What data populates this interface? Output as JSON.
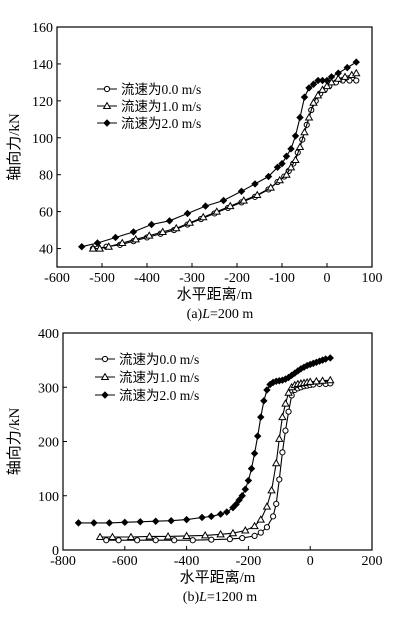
{
  "chart_data": [
    {
      "type": "line",
      "caption_prefix": "(a)",
      "caption_var": "L",
      "caption_rest": "=200 m",
      "xlabel": "水平距离/m",
      "ylabel": "轴向力/kN",
      "xlim": [
        -600,
        100
      ],
      "ylim": [
        30,
        160
      ],
      "xticks": [
        -600,
        -500,
        -400,
        -300,
        -200,
        -100,
        0,
        100
      ],
      "yticks": [
        40,
        60,
        80,
        100,
        120,
        140,
        160
      ],
      "grid": false,
      "legend_position": "top-left",
      "series": [
        {
          "name": "流速为0.0 m/s",
          "marker": "circle",
          "x": [
            -520,
            -510,
            -490,
            -460,
            -430,
            -400,
            -370,
            -340,
            -310,
            -280,
            -250,
            -220,
            -190,
            -160,
            -130,
            -110,
            -95,
            -85,
            -75,
            -65,
            -55,
            -45,
            -35,
            -25,
            -15,
            -5,
            5,
            20,
            35,
            50,
            65
          ],
          "y": [
            40,
            40,
            41,
            42,
            44,
            46,
            48,
            50,
            53,
            56,
            59,
            62,
            65,
            68,
            72,
            76,
            79,
            82,
            86,
            92,
            99,
            107,
            115,
            120,
            124,
            126,
            128,
            130,
            131,
            131,
            131
          ]
        },
        {
          "name": "流速为1.0 m/s",
          "marker": "triangle",
          "x": [
            -520,
            -505,
            -485,
            -455,
            -425,
            -395,
            -365,
            -335,
            -305,
            -275,
            -245,
            -215,
            -185,
            -155,
            -125,
            -105,
            -90,
            -80,
            -70,
            -60,
            -50,
            -40,
            -30,
            -20,
            -10,
            0,
            10,
            25,
            40,
            55,
            65
          ],
          "y": [
            40,
            40,
            41,
            43,
            45,
            47,
            49,
            51,
            54,
            57,
            60,
            63,
            66,
            69,
            73,
            77,
            80,
            84,
            88,
            95,
            103,
            111,
            119,
            123,
            126,
            128,
            130,
            132,
            133,
            134,
            135
          ]
        },
        {
          "name": "流速为2.0 m/s",
          "marker": "diamond",
          "x": [
            -545,
            -510,
            -470,
            -430,
            -390,
            -350,
            -310,
            -270,
            -230,
            -190,
            -160,
            -130,
            -110,
            -100,
            -90,
            -80,
            -70,
            -60,
            -50,
            -40,
            -30,
            -20,
            -10,
            0,
            10,
            25,
            45,
            65
          ],
          "y": [
            41,
            43,
            46,
            49,
            53,
            55,
            59,
            63,
            66,
            71,
            75,
            79,
            84,
            86,
            90,
            94,
            101,
            111,
            122,
            127,
            129,
            131,
            131,
            131,
            133,
            135,
            138,
            141
          ]
        }
      ]
    },
    {
      "type": "line",
      "caption_prefix": "(b)",
      "caption_var": "L",
      "caption_rest": "=1200 m",
      "xlabel": "水平距离/m",
      "ylabel": "轴向力/kN",
      "xlim": [
        -800,
        200
      ],
      "ylim": [
        0,
        400
      ],
      "xticks": [
        -800,
        -600,
        -400,
        -200,
        0,
        200
      ],
      "yticks": [
        0,
        100,
        200,
        300,
        400
      ],
      "grid": false,
      "legend_position": "top-left",
      "series": [
        {
          "name": "流速为0.0 m/s",
          "marker": "circle",
          "x": [
            -660,
            -620,
            -560,
            -500,
            -440,
            -380,
            -320,
            -260,
            -220,
            -180,
            -160,
            -140,
            -120,
            -110,
            -100,
            -90,
            -80,
            -70,
            -60,
            -50,
            -40,
            -30,
            -20,
            -10,
            0,
            10,
            30,
            50,
            65
          ],
          "y": [
            18,
            18,
            18,
            18,
            18,
            18,
            19,
            20,
            22,
            26,
            32,
            42,
            62,
            85,
            130,
            180,
            220,
            255,
            285,
            295,
            298,
            300,
            302,
            303,
            304,
            305,
            306,
            306,
            307
          ]
        },
        {
          "name": "流速为1.0 m/s",
          "marker": "triangle",
          "x": [
            -680,
            -640,
            -580,
            -520,
            -460,
            -400,
            -340,
            -290,
            -250,
            -210,
            -180,
            -160,
            -140,
            -125,
            -110,
            -100,
            -90,
            -80,
            -70,
            -60,
            -50,
            -40,
            -30,
            -20,
            -10,
            0,
            20,
            40,
            65
          ],
          "y": [
            24,
            24,
            24,
            25,
            25,
            26,
            27,
            29,
            31,
            36,
            44,
            56,
            80,
            110,
            160,
            205,
            245,
            270,
            290,
            300,
            304,
            306,
            307,
            308,
            309,
            310,
            311,
            312,
            313
          ]
        },
        {
          "name": "流速为2.0 m/s",
          "marker": "diamond",
          "x": [
            -750,
            -700,
            -650,
            -600,
            -550,
            -500,
            -450,
            -400,
            -350,
            -320,
            -290,
            -270,
            -250,
            -240,
            -230,
            -220,
            -210,
            -200,
            -190,
            -180,
            -170,
            -160,
            -150,
            -140,
            -130,
            -120,
            -110,
            -100,
            -90,
            -80,
            -70,
            -60,
            -50,
            -40,
            -30,
            -20,
            -10,
            0,
            10,
            20,
            30,
            40,
            50,
            65
          ],
          "y": [
            50,
            50,
            50,
            51,
            52,
            53,
            54,
            56,
            60,
            62,
            66,
            70,
            78,
            84,
            92,
            100,
            112,
            128,
            150,
            178,
            210,
            245,
            275,
            295,
            305,
            309,
            311,
            312,
            313,
            315,
            318,
            322,
            326,
            330,
            334,
            337,
            340,
            342,
            344,
            346,
            348,
            350,
            352,
            354
          ]
        }
      ]
    }
  ]
}
